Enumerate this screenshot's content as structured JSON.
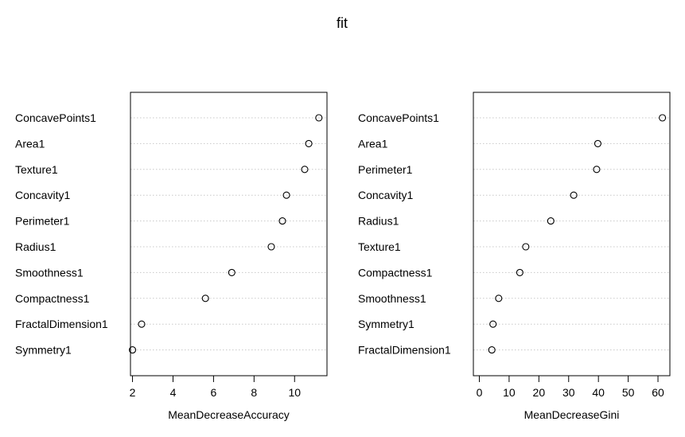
{
  "title": "fit",
  "chart_data": [
    {
      "type": "dotchart",
      "xlabel": "MeanDecreaseAccuracy",
      "ylabel": "",
      "xlim": [
        1.9,
        11.6
      ],
      "xticks": [
        2,
        4,
        6,
        8,
        10
      ],
      "grid": "dotted horizontal per category",
      "categories": [
        "ConcavePoints1",
        "Area1",
        "Texture1",
        "Concavity1",
        "Perimeter1",
        "Radius1",
        "Smoothness1",
        "Compactness1",
        "FractalDimension1",
        "Symmetry1"
      ],
      "values": [
        11.2,
        10.7,
        10.5,
        9.6,
        9.4,
        8.85,
        6.9,
        5.6,
        2.45,
        2.0
      ]
    },
    {
      "type": "dotchart",
      "xlabel": "MeanDecreaseGini",
      "ylabel": "",
      "xlim": [
        -2.0,
        64.0
      ],
      "xticks": [
        0,
        10,
        20,
        30,
        40,
        50,
        60
      ],
      "grid": "dotted horizontal per category",
      "categories": [
        "ConcavePoints1",
        "Area1",
        "Perimeter1",
        "Concavity1",
        "Radius1",
        "Texture1",
        "Compactness1",
        "Smoothness1",
        "Symmetry1",
        "FractalDimension1"
      ],
      "values": [
        61.5,
        39.8,
        39.4,
        31.7,
        24.0,
        15.6,
        13.6,
        6.5,
        4.6,
        4.2
      ]
    }
  ]
}
